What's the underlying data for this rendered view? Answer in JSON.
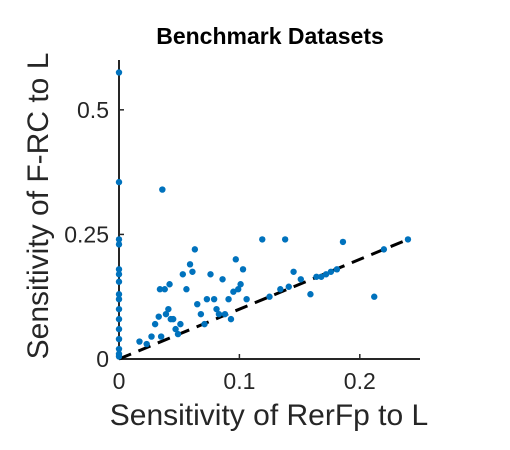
{
  "chart_data": {
    "type": "scatter",
    "title": "Benchmark Datasets",
    "xlabel": "Sensitivity of RerFp to L",
    "ylabel": "Sensitivity of F-RC to L",
    "xlim": [
      0,
      0.25
    ],
    "ylim": [
      0,
      0.6
    ],
    "xticks": [
      0,
      0.1,
      0.2
    ],
    "xtick_labels": [
      "0",
      "0.1",
      "0.2"
    ],
    "yticks": [
      0,
      0.25,
      0.5
    ],
    "ytick_labels": [
      "0",
      "0.25",
      "0.5"
    ],
    "grid": false,
    "marker_color": "#0072BD",
    "reference_line": {
      "style": "dashed",
      "color": "#000000",
      "x": [
        0,
        0.24
      ],
      "y": [
        0,
        0.24
      ]
    },
    "series": [
      {
        "points": [
          [
            0.0,
            0.575
          ],
          [
            0.0,
            0.355
          ],
          [
            0.0,
            0.24
          ],
          [
            0.0,
            0.23
          ],
          [
            0.0,
            0.18
          ],
          [
            0.0,
            0.17
          ],
          [
            0.0,
            0.155
          ],
          [
            0.0,
            0.13
          ],
          [
            0.0,
            0.12
          ],
          [
            0.0,
            0.1
          ],
          [
            0.0,
            0.08
          ],
          [
            0.0,
            0.06
          ],
          [
            0.0,
            0.04
          ],
          [
            0.0,
            0.02
          ],
          [
            0.0,
            0.01
          ],
          [
            0.0,
            0.005
          ],
          [
            0.017,
            0.035
          ],
          [
            0.023,
            0.03
          ],
          [
            0.027,
            0.045
          ],
          [
            0.03,
            0.07
          ],
          [
            0.033,
            0.085
          ],
          [
            0.035,
            0.045
          ],
          [
            0.036,
            0.34
          ],
          [
            0.034,
            0.14
          ],
          [
            0.038,
            0.14
          ],
          [
            0.039,
            0.09
          ],
          [
            0.041,
            0.1
          ],
          [
            0.042,
            0.15
          ],
          [
            0.043,
            0.08
          ],
          [
            0.045,
            0.08
          ],
          [
            0.047,
            0.06
          ],
          [
            0.049,
            0.05
          ],
          [
            0.051,
            0.07
          ],
          [
            0.053,
            0.17
          ],
          [
            0.056,
            0.14
          ],
          [
            0.059,
            0.19
          ],
          [
            0.061,
            0.175
          ],
          [
            0.063,
            0.22
          ],
          [
            0.065,
            0.11
          ],
          [
            0.068,
            0.09
          ],
          [
            0.071,
            0.07
          ],
          [
            0.073,
            0.12
          ],
          [
            0.076,
            0.17
          ],
          [
            0.079,
            0.12
          ],
          [
            0.081,
            0.1
          ],
          [
            0.083,
            0.09
          ],
          [
            0.086,
            0.16
          ],
          [
            0.088,
            0.09
          ],
          [
            0.091,
            0.12
          ],
          [
            0.093,
            0.08
          ],
          [
            0.095,
            0.135
          ],
          [
            0.097,
            0.2
          ],
          [
            0.099,
            0.14
          ],
          [
            0.101,
            0.15
          ],
          [
            0.103,
            0.18
          ],
          [
            0.106,
            0.12
          ],
          [
            0.119,
            0.24
          ],
          [
            0.125,
            0.125
          ],
          [
            0.134,
            0.14
          ],
          [
            0.138,
            0.24
          ],
          [
            0.141,
            0.145
          ],
          [
            0.145,
            0.175
          ],
          [
            0.151,
            0.16
          ],
          [
            0.159,
            0.13
          ],
          [
            0.164,
            0.165
          ],
          [
            0.168,
            0.165
          ],
          [
            0.172,
            0.17
          ],
          [
            0.176,
            0.175
          ],
          [
            0.181,
            0.18
          ],
          [
            0.186,
            0.235
          ],
          [
            0.212,
            0.125
          ],
          [
            0.22,
            0.22
          ],
          [
            0.24,
            0.24
          ]
        ]
      }
    ]
  }
}
